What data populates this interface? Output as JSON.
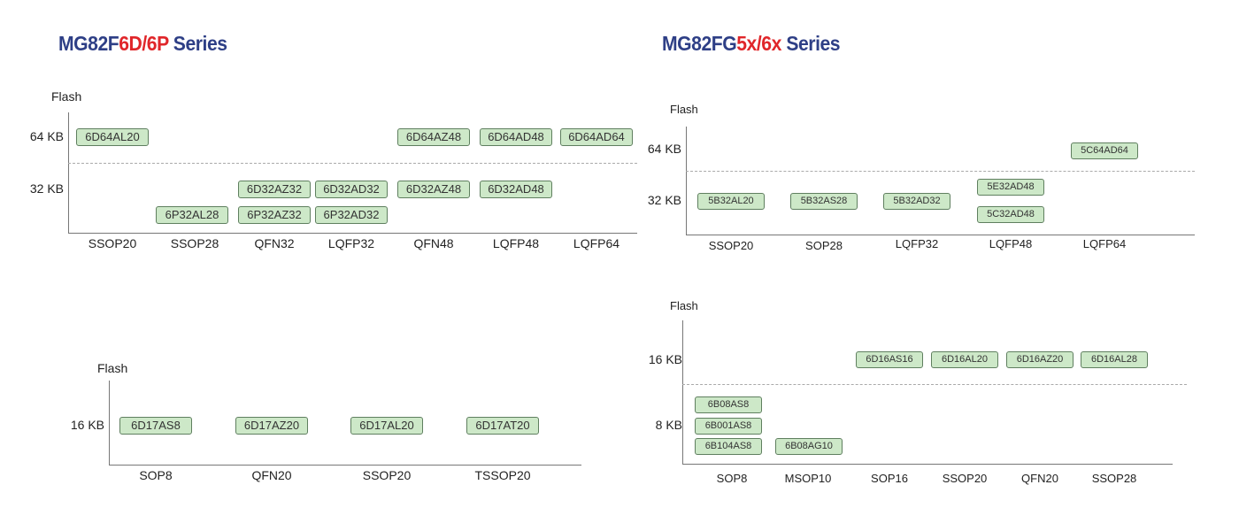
{
  "left_title": {
    "prefix": "MG82F",
    "highlight": "6D/6P",
    "suffix": " Series"
  },
  "right_title": {
    "prefix": "MG82FG",
    "highlight": "5x/6x",
    "suffix": " Series"
  },
  "panel1": {
    "axis_label": "Flash",
    "y_labels": [
      "64 KB",
      "32 KB"
    ],
    "x_labels": [
      "SSOP20",
      "SSOP28",
      "QFN32",
      "LQFP32",
      "QFN48",
      "LQFP48",
      "LQFP64"
    ],
    "chips": [
      "6D64AL20",
      "6D64AZ48",
      "6D64AD48",
      "6D64AD64",
      "6D32AZ32",
      "6D32AD32",
      "6D32AZ48",
      "6D32AD48",
      "6P32AL28",
      "6P32AZ32",
      "6P32AD32"
    ]
  },
  "panel2": {
    "axis_label": "Flash",
    "y_labels": [
      "64 KB",
      "32 KB"
    ],
    "x_labels": [
      "SSOP20",
      "SOP28",
      "LQFP32",
      "LQFP48",
      "LQFP64"
    ],
    "chips": [
      "5C64AD64",
      "5B32AL20",
      "5B32AS28",
      "5B32AD32",
      "5E32AD48",
      "5C32AD48"
    ]
  },
  "panel3": {
    "axis_label": "Flash",
    "y_labels": [
      "16 KB"
    ],
    "x_labels": [
      "SOP8",
      "QFN20",
      "SSOP20",
      "TSSOP20"
    ],
    "chips": [
      "6D17AS8",
      "6D17AZ20",
      "6D17AL20",
      "6D17AT20"
    ]
  },
  "panel4": {
    "axis_label": "Flash",
    "y_labels": [
      "16 KB",
      "8 KB"
    ],
    "x_labels": [
      "SOP8",
      "MSOP10",
      "SOP16",
      "SSOP20",
      "QFN20",
      "SSOP28"
    ],
    "chips": [
      "6D16AS16",
      "6D16AL20",
      "6D16AZ20",
      "6D16AL28",
      "6B08AS8",
      "6B001AS8",
      "6B104AS8",
      "6B08AG10"
    ]
  },
  "colors": {
    "title": "#2e3f86",
    "highlight": "#e0262a",
    "chip_fill": "#cde8c8"
  }
}
